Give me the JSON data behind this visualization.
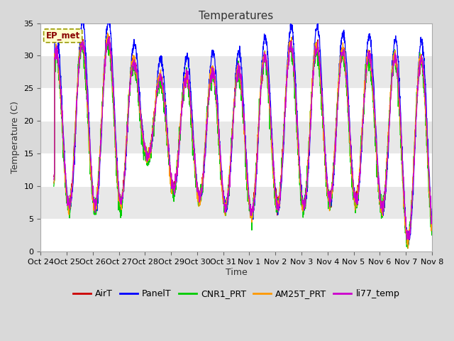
{
  "title": "Temperatures",
  "ylabel": "Temperature (C)",
  "xlabel": "Time",
  "annotation": "EP_met",
  "ylim": [
    0,
    35
  ],
  "tick_labels": [
    "Oct 24",
    "Oct 25",
    "Oct 26",
    "Oct 27",
    "Oct 28",
    "Oct 29",
    "Oct 30",
    "Oct 31",
    "Nov 1",
    "Nov 2",
    "Nov 3",
    "Nov 4",
    "Nov 5",
    "Nov 6",
    "Nov 7",
    "Nov 8"
  ],
  "series": [
    "AirT",
    "PanelT",
    "CNR1_PRT",
    "AM25T_PRT",
    "li77_temp"
  ],
  "colors": [
    "#cc0000",
    "#0000ff",
    "#00cc00",
    "#ff9900",
    "#cc00cc"
  ],
  "background_color": "#e8e8e8",
  "plot_bg_color": "#e8e8e8",
  "grid_color": "#ffffff",
  "title_fontsize": 11,
  "axis_fontsize": 9,
  "tick_fontsize": 8,
  "legend_fontsize": 9,
  "linewidth": 0.9,
  "n_days": 15,
  "pts_per_day": 144
}
